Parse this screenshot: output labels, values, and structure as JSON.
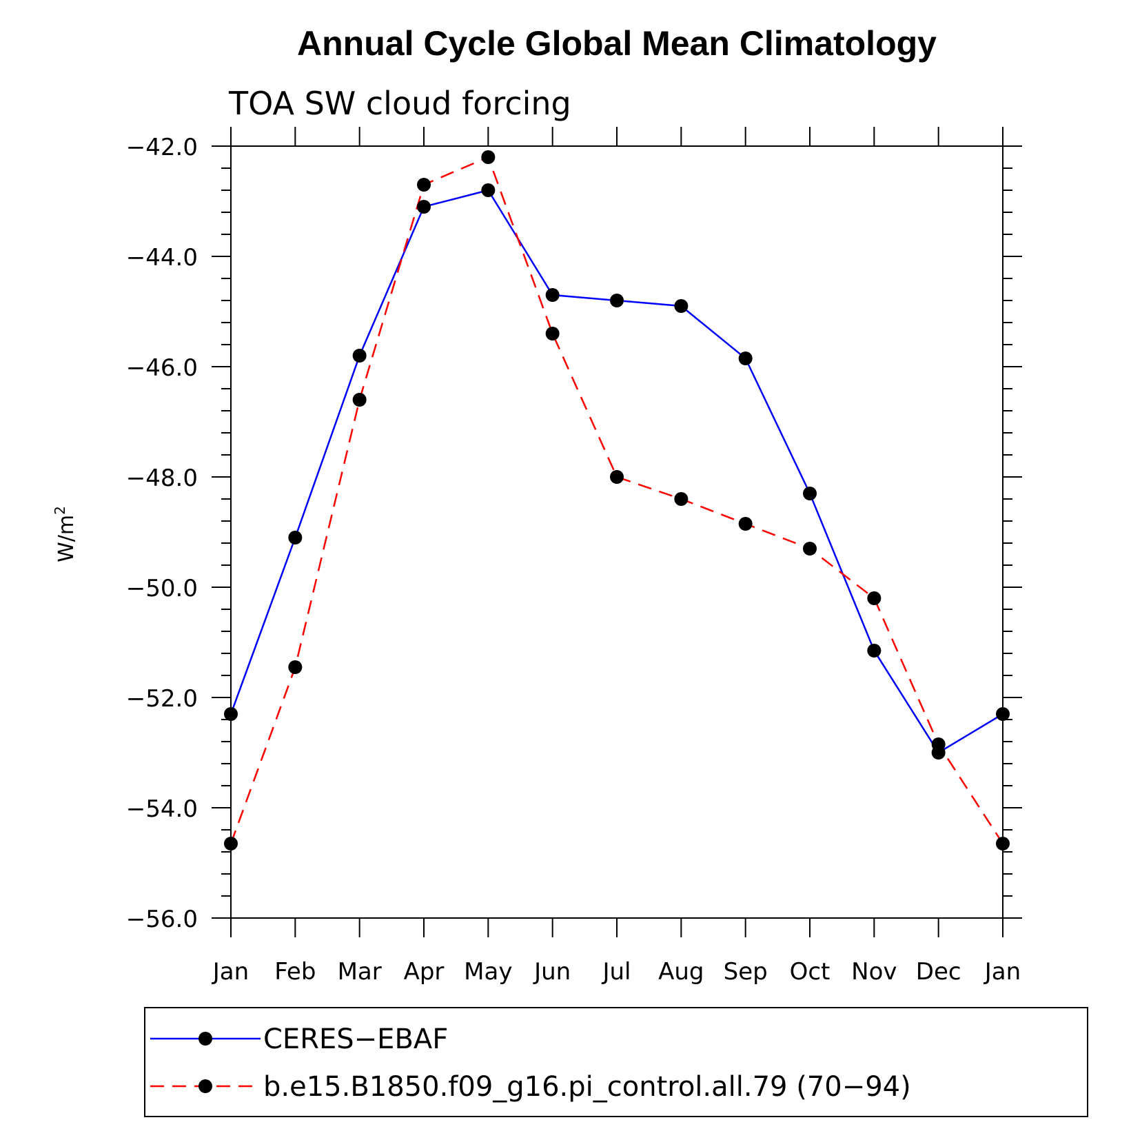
{
  "chart_data": {
    "type": "line",
    "title": "Annual Cycle Global Mean Climatology",
    "subtitle": "TOA SW cloud forcing",
    "xlabel": "",
    "ylabel": "W/m",
    "ylabel_superscript": "2",
    "categories": [
      "Jan",
      "Feb",
      "Mar",
      "Apr",
      "May",
      "Jun",
      "Jul",
      "Aug",
      "Sep",
      "Oct",
      "Nov",
      "Dec",
      "Jan"
    ],
    "ylim": [
      -56.0,
      -42.0
    ],
    "yticks": [
      -42.0,
      -44.0,
      -46.0,
      -48.0,
      -50.0,
      -52.0,
      -54.0,
      -56.0
    ],
    "ytick_labels": [
      "−42.0",
      "−44.0",
      "−46.0",
      "−48.0",
      "−50.0",
      "−52.0",
      "−54.0",
      "−56.0"
    ],
    "grid": false,
    "legend_position": "bottom",
    "series": [
      {
        "name": "CERES−EBAF",
        "color": "#0000ff",
        "dash": "solid",
        "marker": "circle",
        "values": [
          -52.3,
          -49.1,
          -45.8,
          -43.1,
          -42.8,
          -44.7,
          -44.8,
          -44.9,
          -45.85,
          -48.3,
          -51.15,
          -53.0,
          -52.3
        ]
      },
      {
        "name": "b.e15.B1850.f09_g16.pi_control.all.79 (70−94)",
        "color": "#ff0000",
        "dash": "dashed",
        "marker": "circle",
        "values": [
          -54.65,
          -51.45,
          -46.6,
          -42.7,
          -42.2,
          -45.4,
          -48.0,
          -48.4,
          -48.85,
          -49.3,
          -50.2,
          -52.85,
          -54.65
        ]
      }
    ]
  }
}
